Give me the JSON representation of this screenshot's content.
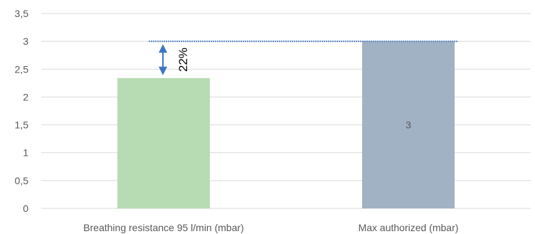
{
  "chart_data": {
    "type": "bar",
    "categories": [
      "Breathing resistance 95 l/min (mbar)",
      "Max authorized (mbar)"
    ],
    "values": [
      2.34,
      3
    ],
    "value_labels": [
      "",
      "3"
    ],
    "ylim": [
      0,
      3.5
    ],
    "yticks": [
      0,
      0.5,
      1,
      1.5,
      2,
      2.5,
      3,
      3.5
    ],
    "ytick_labels": [
      "0",
      "0,5",
      "1",
      "1,5",
      "2",
      "2,5",
      "3",
      "3,5"
    ],
    "grid": true,
    "colors": {
      "bars": [
        "#b7dbb2",
        "#a1b2c4"
      ],
      "grid": "#d9d9d9",
      "reference_line": "#5b8ac6",
      "arrow": "#3d76c5",
      "text": "#595959",
      "annotation_text": "#000000"
    },
    "annotation": {
      "text": "22%",
      "from_value": 2.34,
      "to_value": 3
    },
    "reference_line": {
      "value": 3
    }
  }
}
